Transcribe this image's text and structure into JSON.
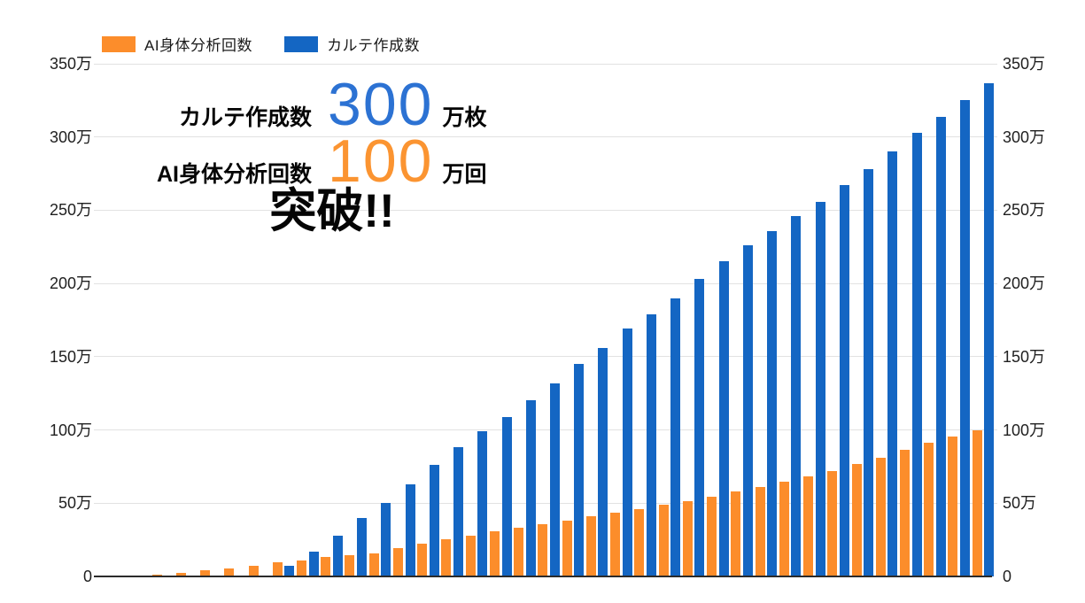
{
  "legend": {
    "items": [
      {
        "label": "AI身体分析回数",
        "color": "#FC8D2B"
      },
      {
        "label": "カルテ作成数",
        "color": "#1466C3"
      }
    ]
  },
  "annotation": {
    "line1": {
      "label": "カルテ作成数",
      "value": "300",
      "unit": "万枚",
      "value_color": "#2C72D3"
    },
    "line2": {
      "label": "AI身体分析回数",
      "value": "100",
      "unit": "万回",
      "value_color": "#FB9431"
    },
    "line3": {
      "text": "突破!!"
    }
  },
  "chart_data": {
    "type": "bar",
    "title": "",
    "xlabel": "",
    "ylabel": "",
    "unit": "万",
    "ylim": [
      0,
      350
    ],
    "grid": true,
    "legend_position": "top-left",
    "dual_y_axis": true,
    "x_labels_visible": false,
    "y_ticks": [
      {
        "value": 0,
        "label": "0"
      },
      {
        "value": 50,
        "label": "50万"
      },
      {
        "value": 100,
        "label": "100万"
      },
      {
        "value": 150,
        "label": "150万"
      },
      {
        "value": 200,
        "label": "200万"
      },
      {
        "value": 250,
        "label": "250万"
      },
      {
        "value": 300,
        "label": "300万"
      },
      {
        "value": 350,
        "label": "350万"
      }
    ],
    "series": [
      {
        "name": "AI身体分析回数",
        "color": "#FC8D2B",
        "values": [
          0.5,
          1.5,
          2.5,
          4,
          5.5,
          7.5,
          9.5,
          11,
          13,
          14.5,
          16,
          19.5,
          22.5,
          25.5,
          28,
          31,
          33,
          35.5,
          38,
          41,
          43.5,
          46,
          49,
          51.5,
          54.5,
          58,
          61,
          64.5,
          68.5,
          72,
          76.5,
          81,
          86.5,
          91.5,
          95.5,
          100
        ]
      },
      {
        "name": "カルテ作成数",
        "color": "#1466C3",
        "values": [
          0,
          0,
          0,
          0,
          0,
          0,
          7,
          17,
          28,
          40,
          50,
          63,
          76,
          88,
          99,
          109,
          120,
          132,
          145,
          156,
          169,
          179,
          190,
          203,
          215,
          226,
          236,
          246,
          256,
          267,
          278,
          290,
          303,
          314,
          325,
          337
        ]
      }
    ]
  }
}
